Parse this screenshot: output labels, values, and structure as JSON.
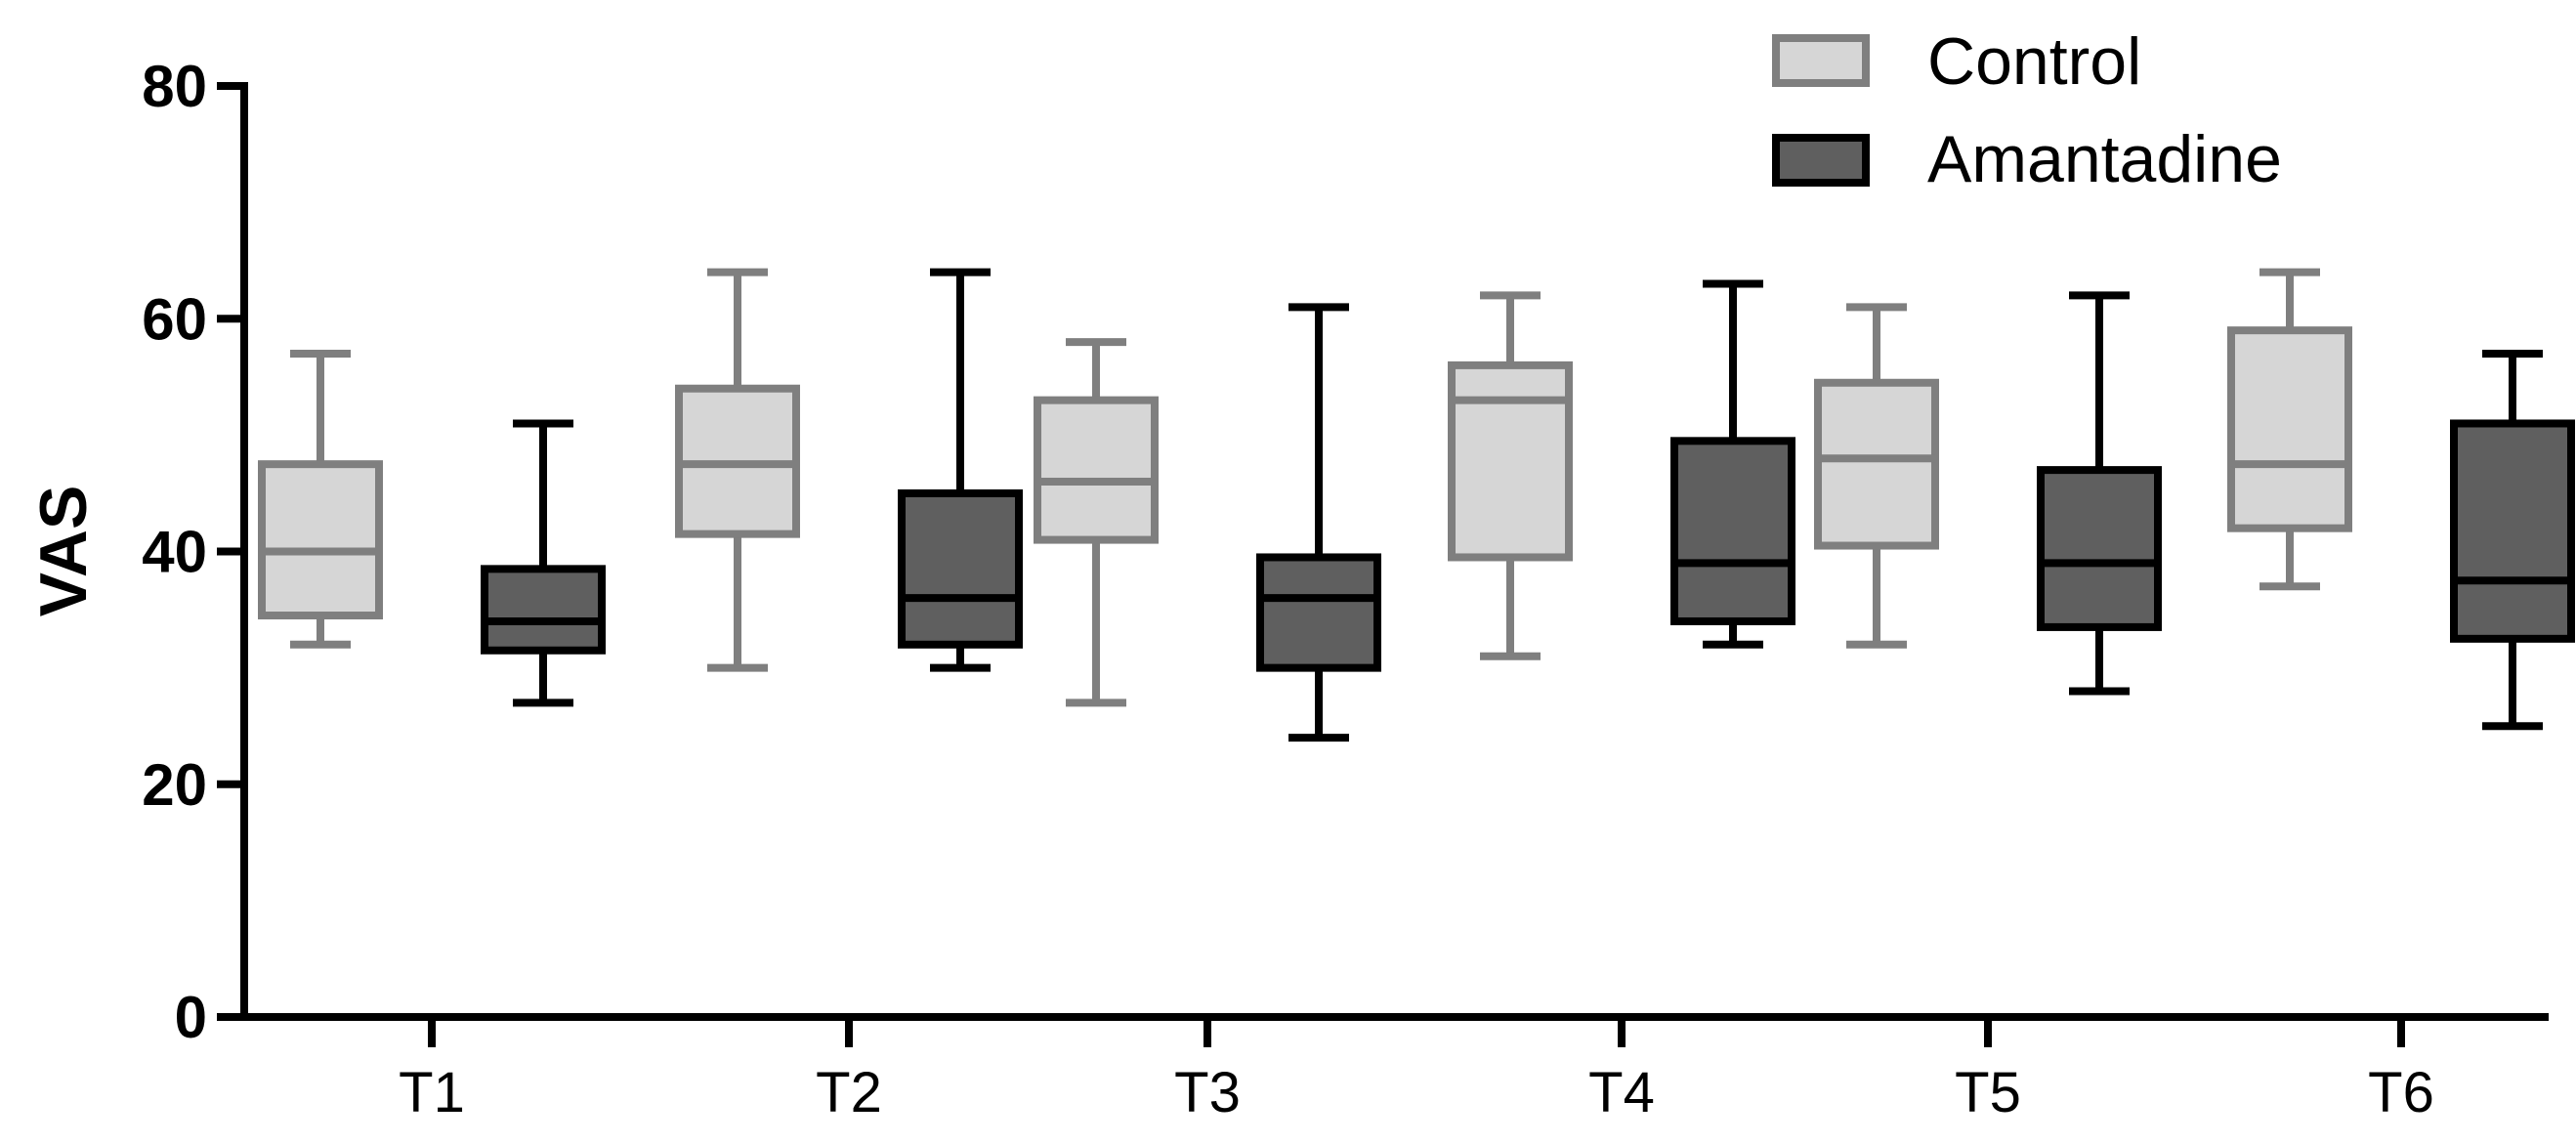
{
  "chart_data": {
    "type": "box",
    "title": "",
    "xlabel": "",
    "ylabel": "VAS",
    "ylim": [
      0,
      80
    ],
    "yticks": [
      0,
      20,
      40,
      60,
      80
    ],
    "categories": [
      "T1",
      "T2",
      "T3",
      "T4",
      "T5",
      "T6"
    ],
    "grid": false,
    "legend_position": "top-right",
    "series": [
      {
        "name": "Control",
        "fill_color": "#d6d6d6",
        "stroke_color": "#7f7f7f",
        "boxes": [
          {
            "min": 32,
            "q1": 34.5,
            "median": 40,
            "q3": 47.5,
            "max": 57
          },
          {
            "min": 30,
            "q1": 41.5,
            "median": 47.5,
            "q3": 54,
            "max": 64
          },
          {
            "min": 27,
            "q1": 41,
            "median": 46,
            "q3": 53,
            "max": 58
          },
          {
            "min": 31,
            "q1": 39.5,
            "median": 53,
            "q3": 56,
            "max": 62
          },
          {
            "min": 32,
            "q1": 40.5,
            "median": 48,
            "q3": 54.5,
            "max": 61
          },
          {
            "min": 37,
            "q1": 42,
            "median": 47.5,
            "q3": 59,
            "max": 64
          }
        ]
      },
      {
        "name": "Amantadine",
        "fill_color": "#5f5f5f",
        "stroke_color": "#000000",
        "boxes": [
          {
            "min": 27,
            "q1": 31.5,
            "median": 34,
            "q3": 38.5,
            "max": 51
          },
          {
            "min": 30,
            "q1": 32,
            "median": 36,
            "q3": 45,
            "max": 64
          },
          {
            "min": 24,
            "q1": 30,
            "median": 36,
            "q3": 39.5,
            "max": 61
          },
          {
            "min": 32,
            "q1": 34,
            "median": 39,
            "q3": 49.5,
            "max": 63
          },
          {
            "min": 28,
            "q1": 33.5,
            "median": 39,
            "q3": 47,
            "max": 62
          },
          {
            "min": 25,
            "q1": 32.5,
            "median": 37.5,
            "q3": 51,
            "max": 57
          }
        ]
      }
    ]
  }
}
